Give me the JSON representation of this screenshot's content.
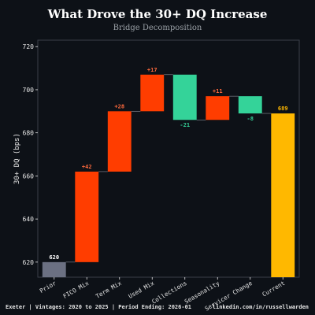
{
  "chart_data": {
    "type": "waterfall",
    "title": "What Drove the 30+ DQ Increase",
    "subtitle": "Bridge Decomposition",
    "ylabel": "30+ DQ (bps)",
    "ylim": [
      613,
      723
    ],
    "yticks": [
      620,
      640,
      660,
      680,
      700,
      720
    ],
    "grid": false,
    "steps": [
      {
        "label": "Prior",
        "kind": "total",
        "value": 620,
        "value_label": "620"
      },
      {
        "label": "FICO Mix",
        "kind": "delta",
        "value": 42,
        "value_label": "+42"
      },
      {
        "label": "Term Mix",
        "kind": "delta",
        "value": 28,
        "value_label": "+28"
      },
      {
        "label": "Used Mix",
        "kind": "delta",
        "value": 17,
        "value_label": "+17"
      },
      {
        "label": "Collections",
        "kind": "delta",
        "value": -21,
        "value_label": "-21"
      },
      {
        "label": "Seasonality",
        "kind": "delta",
        "value": 11,
        "value_label": "+11"
      },
      {
        "label": "Servicer Change",
        "kind": "delta",
        "value": -8,
        "value_label": "-8"
      },
      {
        "label": "Current",
        "kind": "total",
        "value": 689,
        "value_label": "689"
      }
    ],
    "colors": {
      "prior": "#6b7082",
      "increase": "#ff3d00",
      "decrease": "#34d399",
      "current": "#ffb800",
      "axis": "#3a3f4a",
      "tick_text": "#e6e6e6",
      "increase_label": "#ff6a3d",
      "decrease_label": "#34d399",
      "total_label": "#ffffff",
      "current_label": "#ffb800"
    }
  },
  "footer": {
    "left": "Exeter | Vintages: 2020 to 2025 | Period Ending: 2026-01",
    "right": "linkedin.com/in/russellwarden"
  }
}
